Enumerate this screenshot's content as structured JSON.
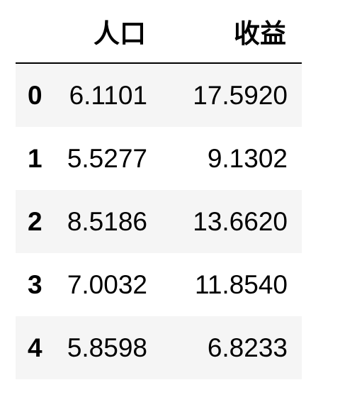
{
  "table": {
    "columns": [
      "人口",
      "收益"
    ],
    "rows": [
      {
        "index": "0",
        "cells": [
          "6.1101",
          "17.5920"
        ]
      },
      {
        "index": "1",
        "cells": [
          "5.5277",
          "9.1302"
        ]
      },
      {
        "index": "2",
        "cells": [
          "8.5186",
          "13.6620"
        ]
      },
      {
        "index": "3",
        "cells": [
          "7.0032",
          "11.8540"
        ]
      },
      {
        "index": "4",
        "cells": [
          "5.8598",
          "6.8233"
        ]
      }
    ]
  }
}
